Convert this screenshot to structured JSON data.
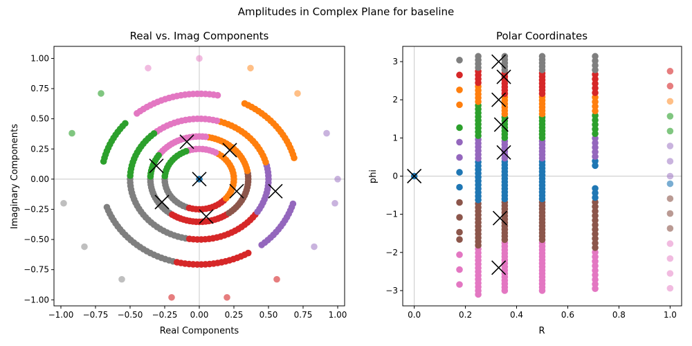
{
  "figure": {
    "suptitle": "Amplitudes in Complex Plane for baseline"
  },
  "colors": {
    "c1": "#1f77b4",
    "c2": "#ff7f0e",
    "c3": "#2ca02c",
    "c4": "#d62728",
    "c5": "#9467bd",
    "c6": "#8c564b",
    "c7": "#e377c2",
    "c8": "#7f7f7f",
    "marker": "#000000",
    "refline": "#c8c8c8"
  },
  "chart_data": [
    {
      "type": "scatter",
      "title": "Real vs. Imag Components",
      "xlabel": "Real Components",
      "ylabel": "Imaginary Components",
      "xlim": [
        -1.05,
        1.05
      ],
      "ylim": [
        -1.05,
        1.1
      ],
      "xticks": [
        -1.0,
        -0.75,
        -0.5,
        -0.25,
        0.0,
        0.25,
        0.5,
        0.75,
        1.0
      ],
      "xtick_labels": [
        "−1.00",
        "−0.75",
        "−0.50",
        "−0.25",
        "0.00",
        "0.25",
        "0.50",
        "0.75",
        "1.00"
      ],
      "yticks": [
        1.0,
        0.75,
        0.5,
        0.25,
        0.0,
        -0.25,
        -0.5,
        -0.75,
        -1.0
      ],
      "ytick_labels": [
        "1.00",
        "0.75",
        "0.50",
        "0.25",
        "0.00",
        "−0.25",
        "−0.50",
        "−0.75",
        "−1.00"
      ],
      "reference_lines": {
        "x": 0,
        "y": 0
      },
      "rings": [
        {
          "r": 0.25,
          "n": 64,
          "segments": [
            {
              "from": -180,
              "to": -110,
              "color": "c8"
            },
            {
              "from": -110,
              "to": -40,
              "color": "c4"
            },
            {
              "from": -40,
              "to": 60,
              "color": "c2"
            },
            {
              "from": 60,
              "to": 110,
              "color": "c7"
            },
            {
              "from": 110,
              "to": 180,
              "color": "c3"
            }
          ]
        },
        {
          "r": 0.3536,
          "n": 96,
          "segments": [
            {
              "from": -180,
              "to": -125,
              "color": "c8"
            },
            {
              "from": -125,
              "to": -55,
              "color": "c4"
            },
            {
              "from": -55,
              "to": 10,
              "color": "c6"
            },
            {
              "from": 10,
              "to": 80,
              "color": "c2"
            },
            {
              "from": 80,
              "to": 145,
              "color": "c7"
            },
            {
              "from": 145,
              "to": 180,
              "color": "c3"
            }
          ]
        },
        {
          "r": 0.5,
          "n": 110,
          "segments": [
            {
              "from": -180,
              "to": -100,
              "color": "c8"
            },
            {
              "from": -100,
              "to": -35,
              "color": "c4"
            },
            {
              "from": -35,
              "to": 15,
              "color": "c5"
            },
            {
              "from": 15,
              "to": 75,
              "color": "c2"
            },
            {
              "from": 75,
              "to": 130,
              "color": "c7"
            },
            {
              "from": 130,
              "to": 180,
              "color": "c3"
            }
          ]
        },
        {
          "r": 0.7071,
          "n": 150,
          "partial": true,
          "segments": [
            {
              "from": -162,
              "to": -105,
              "color": "c8"
            },
            {
              "from": -105,
              "to": -60,
              "color": "c4"
            },
            {
              "from": -52,
              "to": -16,
              "color": "c5"
            },
            {
              "from": 14,
              "to": 64,
              "color": "c2"
            },
            {
              "from": 79,
              "to": 131,
              "color": "c7"
            },
            {
              "from": 138,
              "to": 170,
              "color": "c3"
            }
          ]
        }
      ],
      "points": [
        {
          "x": 0.0,
          "y": 0.0,
          "color": "c1"
        },
        {
          "x": 0.0,
          "y": 1.0,
          "color": "c7",
          "alpha": 0.5
        },
        {
          "x": -0.37,
          "y": 0.92,
          "color": "c7",
          "alpha": 0.5
        },
        {
          "x": 0.37,
          "y": 0.92,
          "color": "c2",
          "alpha": 0.5
        },
        {
          "x": 0.71,
          "y": 0.71,
          "color": "c2",
          "alpha": 0.5
        },
        {
          "x": -0.71,
          "y": 0.71,
          "color": "c3",
          "alpha": 0.6
        },
        {
          "x": -0.92,
          "y": 0.38,
          "color": "c3",
          "alpha": 0.6
        },
        {
          "x": 0.92,
          "y": 0.38,
          "color": "c5",
          "alpha": 0.5
        },
        {
          "x": 1.0,
          "y": 0.0,
          "color": "c5",
          "alpha": 0.5
        },
        {
          "x": 0.98,
          "y": -0.2,
          "color": "c5",
          "alpha": 0.5
        },
        {
          "x": -0.98,
          "y": -0.2,
          "color": "c8",
          "alpha": 0.5
        },
        {
          "x": -0.83,
          "y": -0.56,
          "color": "c8",
          "alpha": 0.5
        },
        {
          "x": 0.83,
          "y": -0.56,
          "color": "c5",
          "alpha": 0.5
        },
        {
          "x": -0.56,
          "y": -0.83,
          "color": "c8",
          "alpha": 0.5
        },
        {
          "x": 0.56,
          "y": -0.83,
          "color": "c4",
          "alpha": 0.6
        },
        {
          "x": -0.2,
          "y": -0.98,
          "color": "c4",
          "alpha": 0.6
        },
        {
          "x": 0.2,
          "y": -0.98,
          "color": "c4",
          "alpha": 0.6
        }
      ],
      "markers": [
        {
          "x": 0.0,
          "y": 0.0
        },
        {
          "x": -0.09,
          "y": 0.31
        },
        {
          "x": 0.22,
          "y": 0.24
        },
        {
          "x": -0.31,
          "y": 0.11
        },
        {
          "x": 0.27,
          "y": -0.1
        },
        {
          "x": 0.55,
          "y": -0.1
        },
        {
          "x": -0.27,
          "y": -0.19
        },
        {
          "x": 0.05,
          "y": -0.31
        }
      ]
    },
    {
      "type": "scatter",
      "title": "Polar Coordinates",
      "xlabel": "R",
      "ylabel": "phi",
      "xlim": [
        -0.045,
        1.045
      ],
      "ylim": [
        -3.4,
        3.4
      ],
      "xticks": [
        0.0,
        0.2,
        0.4,
        0.6,
        0.8,
        1.0
      ],
      "xtick_labels": [
        "0.0",
        "0.2",
        "0.4",
        "0.6",
        "0.8",
        "1.0"
      ],
      "yticks": [
        3,
        2,
        1,
        0,
        -1,
        -2,
        -3
      ],
      "ytick_labels": [
        "3",
        "2",
        "1",
        "0",
        "−1",
        "−2",
        "−3"
      ],
      "reference_lines": {
        "x": 0,
        "y": 0
      },
      "columns": [
        {
          "r": 0.25,
          "phi_min": -3.1,
          "phi_max": 3.14,
          "n": 64,
          "segments": [
            {
              "to": -1.9,
              "color": "c7"
            },
            {
              "to": -0.7,
              "color": "c6"
            },
            {
              "to": 0.4,
              "color": "c1"
            },
            {
              "to": 1.0,
              "color": "c5"
            },
            {
              "to": 1.9,
              "color": "c3"
            },
            {
              "to": 2.4,
              "color": "c2"
            },
            {
              "to": 2.75,
              "color": "c4"
            },
            {
              "to": 3.2,
              "color": "c8"
            }
          ]
        },
        {
          "r": 0.3536,
          "phi_min": -3.0,
          "phi_max": 3.14,
          "n": 70,
          "segments": [
            {
              "to": -1.7,
              "color": "c7"
            },
            {
              "to": -0.6,
              "color": "c6"
            },
            {
              "to": 0.4,
              "color": "c1"
            },
            {
              "to": 1.0,
              "color": "c5"
            },
            {
              "to": 1.6,
              "color": "c3"
            },
            {
              "to": 2.1,
              "color": "c2"
            },
            {
              "to": 2.75,
              "color": "c4"
            },
            {
              "to": 3.2,
              "color": "c8"
            }
          ]
        },
        {
          "r": 0.5,
          "phi_min": -3.0,
          "phi_max": 3.14,
          "n": 70,
          "segments": [
            {
              "to": -1.7,
              "color": "c7"
            },
            {
              "to": -0.6,
              "color": "c6"
            },
            {
              "to": 0.4,
              "color": "c1"
            },
            {
              "to": 1.0,
              "color": "c5"
            },
            {
              "to": 1.6,
              "color": "c3"
            },
            {
              "to": 2.1,
              "color": "c2"
            },
            {
              "to": 2.75,
              "color": "c4"
            },
            {
              "to": 3.2,
              "color": "c8"
            }
          ]
        },
        {
          "r": 0.7071,
          "phi_min": -2.95,
          "phi_max": 3.14,
          "n": 52,
          "gaps": [
            [
              -0.27,
              0.22
            ]
          ],
          "segments": [
            {
              "to": -1.9,
              "color": "c7"
            },
            {
              "to": -0.6,
              "color": "c6"
            },
            {
              "to": 0.4,
              "color": "c1"
            },
            {
              "to": 1.0,
              "color": "c5"
            },
            {
              "to": 1.6,
              "color": "c3"
            },
            {
              "to": 2.1,
              "color": "c2"
            },
            {
              "to": 2.75,
              "color": "c4"
            },
            {
              "to": 3.2,
              "color": "c8"
            }
          ]
        }
      ],
      "points": [
        {
          "x": 0.0,
          "y": 0.0,
          "color": "c1"
        },
        {
          "x": 0.1768,
          "y": 3.04,
          "color": "c8"
        },
        {
          "x": 0.1768,
          "y": 2.65,
          "color": "c4"
        },
        {
          "x": 0.1768,
          "y": 2.26,
          "color": "c2"
        },
        {
          "x": 0.1768,
          "y": 1.87,
          "color": "c2"
        },
        {
          "x": 0.1768,
          "y": 1.27,
          "color": "c3"
        },
        {
          "x": 0.1768,
          "y": 0.89,
          "color": "c5"
        },
        {
          "x": 0.1768,
          "y": 0.49,
          "color": "c5"
        },
        {
          "x": 0.1768,
          "y": 0.1,
          "color": "c1"
        },
        {
          "x": 0.1768,
          "y": -0.29,
          "color": "c1"
        },
        {
          "x": 0.1768,
          "y": -0.69,
          "color": "c6"
        },
        {
          "x": 0.1768,
          "y": -1.08,
          "color": "c6"
        },
        {
          "x": 0.1768,
          "y": -1.47,
          "color": "c6"
        },
        {
          "x": 0.1768,
          "y": -1.66,
          "color": "c6"
        },
        {
          "x": 0.1768,
          "y": -2.06,
          "color": "c7"
        },
        {
          "x": 0.1768,
          "y": -2.45,
          "color": "c7"
        },
        {
          "x": 0.1768,
          "y": -2.84,
          "color": "c7"
        },
        {
          "x": 1.0,
          "y": 2.75,
          "color": "c4",
          "alpha": 0.6
        },
        {
          "x": 1.0,
          "y": 2.36,
          "color": "c4",
          "alpha": 0.6
        },
        {
          "x": 1.0,
          "y": 1.96,
          "color": "c2",
          "alpha": 0.5
        },
        {
          "x": 1.0,
          "y": 1.57,
          "color": "c3",
          "alpha": 0.6
        },
        {
          "x": 1.0,
          "y": 1.18,
          "color": "c3",
          "alpha": 0.6
        },
        {
          "x": 1.0,
          "y": 0.79,
          "color": "c5",
          "alpha": 0.5
        },
        {
          "x": 1.0,
          "y": 0.39,
          "color": "c5",
          "alpha": 0.5
        },
        {
          "x": 1.0,
          "y": 0.0,
          "color": "c5",
          "alpha": 0.5
        },
        {
          "x": 1.0,
          "y": -0.2,
          "color": "c1",
          "alpha": 0.6
        },
        {
          "x": 1.0,
          "y": -0.59,
          "color": "c6",
          "alpha": 0.6
        },
        {
          "x": 1.0,
          "y": -0.98,
          "color": "c6",
          "alpha": 0.6
        },
        {
          "x": 1.0,
          "y": -1.37,
          "color": "c6",
          "alpha": 0.6
        },
        {
          "x": 1.0,
          "y": -1.77,
          "color": "c7",
          "alpha": 0.5
        },
        {
          "x": 1.0,
          "y": -2.16,
          "color": "c7",
          "alpha": 0.5
        },
        {
          "x": 1.0,
          "y": -2.55,
          "color": "c7",
          "alpha": 0.5
        },
        {
          "x": 1.0,
          "y": -2.94,
          "color": "c7",
          "alpha": 0.5
        }
      ],
      "markers": [
        {
          "x": 0.0,
          "y": 0.0
        },
        {
          "x": 0.33,
          "y": 3.0
        },
        {
          "x": 0.35,
          "y": 2.6
        },
        {
          "x": 0.33,
          "y": 2.0
        },
        {
          "x": 0.34,
          "y": 1.35
        },
        {
          "x": 0.35,
          "y": 0.62
        },
        {
          "x": 0.335,
          "y": -1.1
        },
        {
          "x": 0.33,
          "y": -2.4
        }
      ]
    }
  ]
}
